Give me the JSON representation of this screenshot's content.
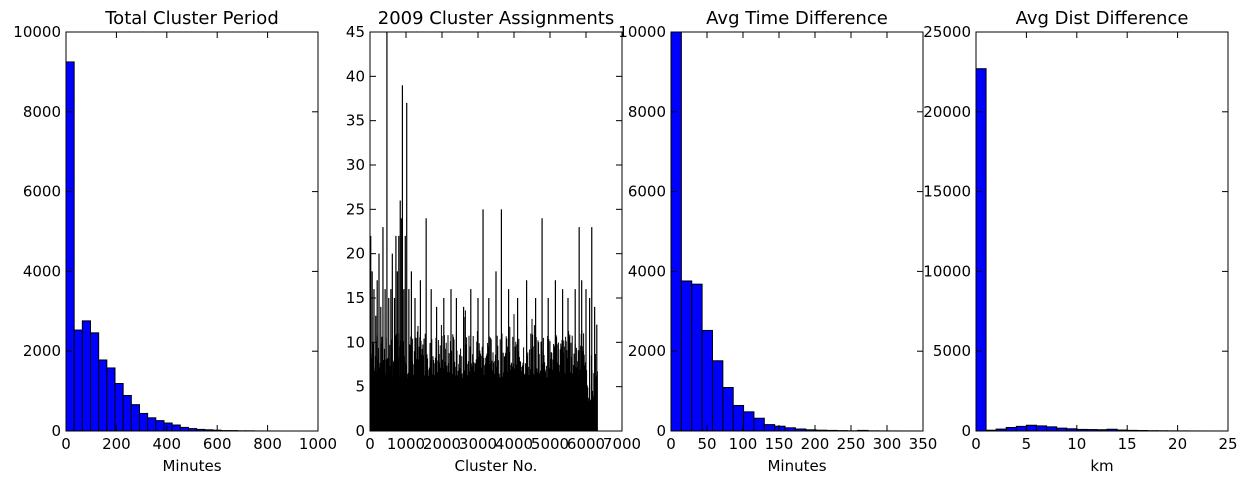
{
  "chart_data": [
    {
      "type": "bar",
      "title": "Total Cluster Period",
      "xlabel": "Minutes",
      "ylabel": "",
      "xlim": [
        0,
        1000
      ],
      "ylim": [
        0,
        10000
      ],
      "xticks": [
        0,
        200,
        400,
        600,
        800,
        1000
      ],
      "yticks": [
        0,
        2000,
        4000,
        6000,
        8000,
        10000
      ],
      "bar_color": "#0000ff",
      "bin_width": 32.4,
      "bin_start": 0,
      "values": [
        9250,
        2530,
        2760,
        2460,
        1780,
        1580,
        1190,
        890,
        660,
        440,
        330,
        260,
        200,
        150,
        90,
        60,
        40,
        30,
        20,
        10,
        10,
        5,
        5,
        2,
        1,
        1,
        0,
        0,
        0,
        0
      ]
    },
    {
      "type": "bar",
      "title": "2009 Cluster Assignments",
      "xlabel": "Cluster No.",
      "ylabel": "",
      "xlim": [
        0,
        7000
      ],
      "ylim": [
        0,
        45
      ],
      "xticks": [
        0,
        1000,
        2000,
        3000,
        4000,
        5000,
        6000,
        7000
      ],
      "yticks": [
        0,
        5,
        10,
        15,
        20,
        25,
        30,
        35,
        40,
        45
      ],
      "bar_color": "#000000",
      "x_range": [
        0,
        6330
      ],
      "spikes": [
        [
          20,
          22
        ],
        [
          60,
          18
        ],
        [
          110,
          16
        ],
        [
          160,
          13
        ],
        [
          200,
          17
        ],
        [
          250,
          20
        ],
        [
          300,
          14
        ],
        [
          360,
          23
        ],
        [
          420,
          16
        ],
        [
          470,
          45
        ],
        [
          520,
          15
        ],
        [
          580,
          16
        ],
        [
          620,
          20
        ],
        [
          680,
          15
        ],
        [
          720,
          22
        ],
        [
          760,
          18
        ],
        [
          800,
          22
        ],
        [
          840,
          26
        ],
        [
          870,
          24
        ],
        [
          900,
          39
        ],
        [
          940,
          16
        ],
        [
          980,
          22
        ],
        [
          1020,
          37
        ],
        [
          1080,
          16
        ],
        [
          1150,
          18
        ],
        [
          1250,
          15
        ],
        [
          1400,
          17
        ],
        [
          1560,
          24
        ],
        [
          1700,
          16
        ],
        [
          1850,
          14
        ],
        [
          2050,
          15
        ],
        [
          2250,
          16
        ],
        [
          2400,
          15
        ],
        [
          2600,
          14
        ],
        [
          2800,
          16
        ],
        [
          3000,
          15
        ],
        [
          3140,
          25
        ],
        [
          3300,
          15
        ],
        [
          3500,
          18
        ],
        [
          3650,
          25
        ],
        [
          3850,
          16
        ],
        [
          4100,
          15
        ],
        [
          4350,
          17
        ],
        [
          4600,
          15
        ],
        [
          4780,
          24
        ],
        [
          4950,
          15
        ],
        [
          5150,
          17
        ],
        [
          5350,
          16
        ],
        [
          5500,
          15
        ],
        [
          5700,
          16
        ],
        [
          5810,
          23
        ],
        [
          5880,
          17
        ],
        [
          6000,
          16
        ],
        [
          6100,
          15
        ],
        [
          6160,
          23
        ],
        [
          6240,
          14
        ],
        [
          6300,
          12
        ]
      ]
    },
    {
      "type": "bar",
      "title": "Avg Time Difference",
      "xlabel": "Minutes",
      "ylabel": "",
      "xlim": [
        0,
        350
      ],
      "ylim": [
        0,
        10000
      ],
      "xticks": [
        0,
        50,
        100,
        150,
        200,
        250,
        300,
        350
      ],
      "yticks": [
        0,
        2000,
        4000,
        6000,
        8000,
        10000
      ],
      "bar_color": "#0000ff",
      "bin_width": 14.4,
      "bin_start": 0,
      "values": [
        10000,
        3760,
        3680,
        2520,
        1760,
        1090,
        640,
        480,
        320,
        160,
        120,
        80,
        50,
        30,
        20,
        15,
        10,
        5,
        15,
        5,
        3,
        2,
        1,
        1
      ]
    },
    {
      "type": "bar",
      "title": "Avg Dist Difference",
      "xlabel": "km",
      "ylabel": "",
      "xlim": [
        0,
        25
      ],
      "ylim": [
        0,
        25000
      ],
      "xticks": [
        0,
        5,
        10,
        15,
        20,
        25
      ],
      "yticks": [
        0,
        5000,
        10000,
        15000,
        20000,
        25000
      ],
      "bar_color": "#0000ff",
      "bin_width": 1.0,
      "bin_start": 0,
      "values": [
        22700,
        50,
        120,
        220,
        290,
        360,
        320,
        260,
        180,
        140,
        100,
        90,
        80,
        110,
        60,
        40,
        30,
        20,
        15,
        10,
        8,
        5,
        3,
        2,
        1
      ]
    }
  ]
}
